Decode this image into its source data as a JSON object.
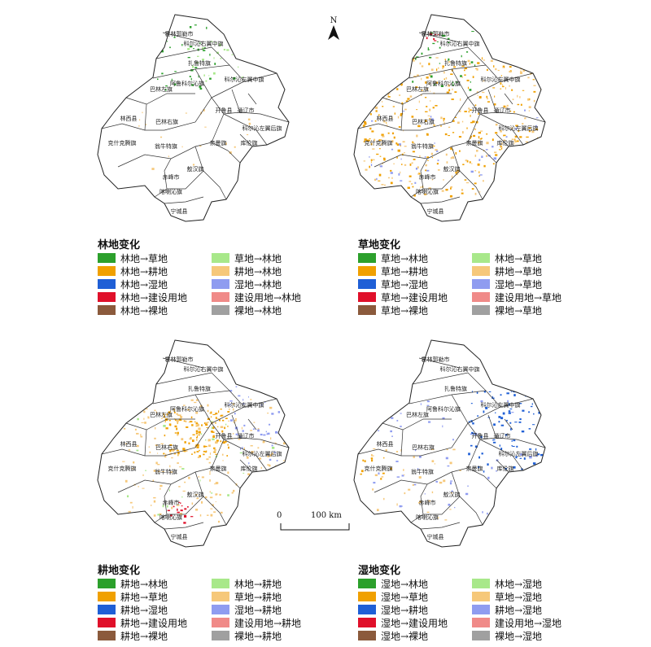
{
  "north_label": "N",
  "scale": {
    "zero": "0",
    "distance": "100 km"
  },
  "region_labels": [
    "霍林郭勒市",
    "科尔沁右翼中旗",
    "扎鲁特旗",
    "科尔沁左翼中旗",
    "阿鲁科尔沁旗",
    "巴林左旗",
    "开鲁县",
    "通辽市",
    "林西县",
    "巴林右旗",
    "科尔沁左翼后旗",
    "克什克腾旗",
    "翁牛特旗",
    "奈曼旗",
    "库伦旗",
    "敖汉旗",
    "赤峰市",
    "喀喇沁旗",
    "宁城县"
  ],
  "colors": {
    "dark_green": "#2ca02c",
    "orange": "#f0a000",
    "blue": "#1f5fd6",
    "red": "#e0102a",
    "brown": "#8b5a3c",
    "light_green": "#a8e88a",
    "tan": "#f6c87a",
    "lavender": "#8f9cf0",
    "pink": "#f08a88",
    "gray": "#a0a0a0"
  },
  "panels": [
    {
      "title": "林地变化",
      "items": [
        {
          "label": "林地→草地",
          "color": "#2ca02c"
        },
        {
          "label": "林地→耕地",
          "color": "#f0a000"
        },
        {
          "label": "林地→湿地",
          "color": "#1f5fd6"
        },
        {
          "label": "林地→建设用地",
          "color": "#e0102a"
        },
        {
          "label": "林地→裸地",
          "color": "#8b5a3c"
        },
        {
          "label": "草地→林地",
          "color": "#a8e88a"
        },
        {
          "label": "耕地→林地",
          "color": "#f6c87a"
        },
        {
          "label": "湿地→林地",
          "color": "#8f9cf0"
        },
        {
          "label": "建设用地→林地",
          "color": "#f08a88"
        },
        {
          "label": "裸地→林地",
          "color": "#a0a0a0"
        }
      ]
    },
    {
      "title": "草地变化",
      "items": [
        {
          "label": "草地→林地",
          "color": "#2ca02c"
        },
        {
          "label": "草地→耕地",
          "color": "#f0a000"
        },
        {
          "label": "草地→湿地",
          "color": "#1f5fd6"
        },
        {
          "label": "草地→建设用地",
          "color": "#e0102a"
        },
        {
          "label": "草地→裸地",
          "color": "#8b5a3c"
        },
        {
          "label": "林地→草地",
          "color": "#a8e88a"
        },
        {
          "label": "耕地→草地",
          "color": "#f6c87a"
        },
        {
          "label": "湿地→草地",
          "color": "#8f9cf0"
        },
        {
          "label": "建设用地→草地",
          "color": "#f08a88"
        },
        {
          "label": "裸地→草地",
          "color": "#a0a0a0"
        }
      ]
    },
    {
      "title": "耕地变化",
      "items": [
        {
          "label": "耕地→林地",
          "color": "#2ca02c"
        },
        {
          "label": "耕地→草地",
          "color": "#f0a000"
        },
        {
          "label": "耕地→湿地",
          "color": "#1f5fd6"
        },
        {
          "label": "耕地→建设用地",
          "color": "#e0102a"
        },
        {
          "label": "耕地→裸地",
          "color": "#8b5a3c"
        },
        {
          "label": "林地→耕地",
          "color": "#a8e88a"
        },
        {
          "label": "草地→耕地",
          "color": "#f6c87a"
        },
        {
          "label": "湿地→耕地",
          "color": "#8f9cf0"
        },
        {
          "label": "建设用地→耕地",
          "color": "#f08a88"
        },
        {
          "label": "裸地→耕地",
          "color": "#a0a0a0"
        }
      ]
    },
    {
      "title": "湿地变化",
      "items": [
        {
          "label": "湿地→林地",
          "color": "#2ca02c"
        },
        {
          "label": "湿地→草地",
          "color": "#f0a000"
        },
        {
          "label": "湿地→耕地",
          "color": "#1f5fd6"
        },
        {
          "label": "湿地→建设用地",
          "color": "#e0102a"
        },
        {
          "label": "湿地→裸地",
          "color": "#8b5a3c"
        },
        {
          "label": "林地→湿地",
          "color": "#a8e88a"
        },
        {
          "label": "草地→湿地",
          "color": "#f6c87a"
        },
        {
          "label": "耕地→湿地",
          "color": "#8f9cf0"
        },
        {
          "label": "建设用地→湿地",
          "color": "#f08a88"
        },
        {
          "label": "裸地→湿地",
          "color": "#a0a0a0"
        }
      ]
    }
  ]
}
